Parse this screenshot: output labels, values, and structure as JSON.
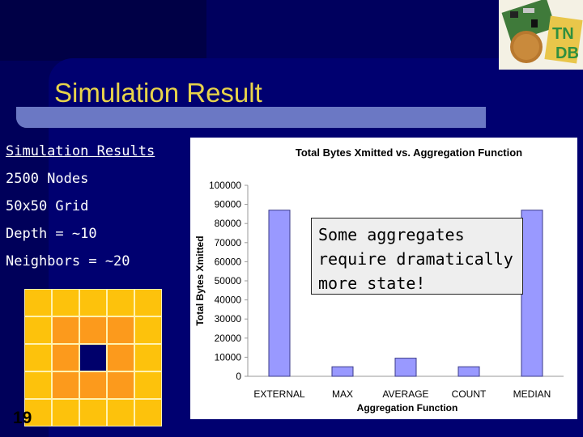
{
  "slide": {
    "title": "Simulation Result",
    "page_number": "19",
    "bullets": [
      "Simulation Results",
      "2500 Nodes",
      "50x50 Grid",
      "Depth = ~10",
      "Neighbors = ~20"
    ],
    "logo_icon": "circuit-board-logo-icon",
    "grid_legend": {
      "outer_color": "#fdc20c",
      "middle_color": "#fc9a1c",
      "center_color": "#00006b"
    },
    "callout": "Some aggregates require dramatically more state!"
  },
  "chart_data": {
    "type": "bar",
    "title": "Total Bytes Xmitted vs. Aggregation Function",
    "xlabel": "Aggregation Function",
    "ylabel": "Total Bytes Xmitted",
    "categories": [
      "EXTERNAL",
      "MAX",
      "AVERAGE",
      "COUNT",
      "MEDIAN"
    ],
    "values": [
      87000,
      5000,
      9500,
      5000,
      87000
    ],
    "ylim": [
      0,
      100000
    ],
    "yticks": [
      "0",
      "10000",
      "20000",
      "30000",
      "40000",
      "50000",
      "60000",
      "70000",
      "80000",
      "90000",
      "100000"
    ],
    "grid": false,
    "bar_color": "#9999ff"
  }
}
